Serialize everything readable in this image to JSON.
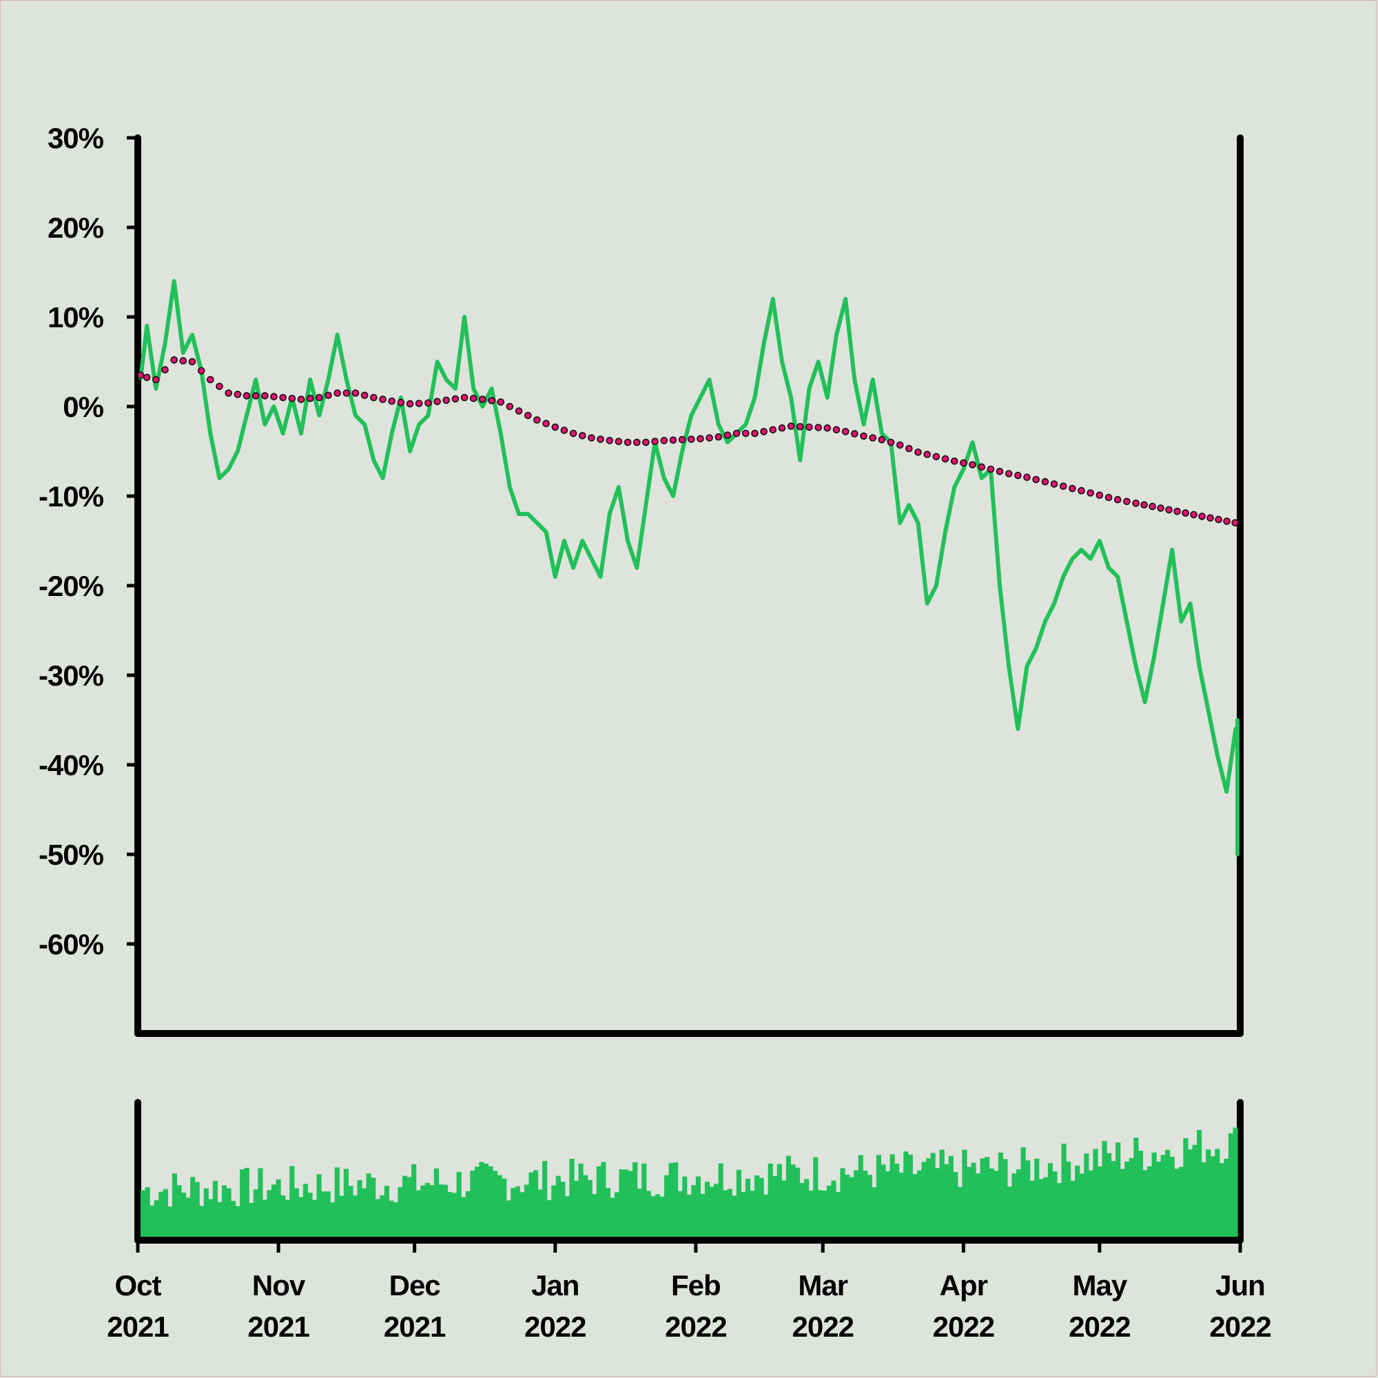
{
  "chart_data": {
    "type": "line",
    "x_axis": {
      "type": "date",
      "range": [
        "2021-10-01",
        "2022-06-01"
      ],
      "ticks": [
        {
          "date": "2021-10-01",
          "label": [
            "Oct",
            "2021"
          ]
        },
        {
          "date": "2021-11-01",
          "label": [
            "Nov",
            "2021"
          ]
        },
        {
          "date": "2021-12-01",
          "label": [
            "Dec",
            "2021"
          ]
        },
        {
          "date": "2022-01-01",
          "label": [
            "Jan",
            "2022"
          ]
        },
        {
          "date": "2022-02-01",
          "label": [
            "Feb",
            "2022"
          ]
        },
        {
          "date": "2022-03-01",
          "label": [
            "Mar",
            "2022"
          ]
        },
        {
          "date": "2022-04-01",
          "label": [
            "Apr",
            "2022"
          ]
        },
        {
          "date": "2022-05-01",
          "label": [
            "May",
            "2022"
          ]
        },
        {
          "date": "2022-06-01",
          "label": [
            "Jun",
            "2022"
          ]
        }
      ]
    },
    "y_axis": {
      "range": [
        -70,
        30
      ],
      "ticks": [
        30,
        20,
        10,
        0,
        -10,
        -20,
        -30,
        -40,
        -50,
        -60
      ],
      "tick_labels": [
        "30%",
        "20%",
        "10%",
        "0%",
        "-10%",
        "-20%",
        "-30%",
        "-40%",
        "-50%",
        "-60%"
      ],
      "unit": "%"
    },
    "grid": false,
    "colors": {
      "price": "#22c05a",
      "trend_fill": "#e0146e",
      "trend_stroke": "#111111",
      "volume": "#22c05a",
      "axes": "#000000",
      "background": "#dee3dc"
    },
    "series": [
      {
        "style": "solid-line",
        "points": [
          [
            "2021-10-01",
            3
          ],
          [
            "2021-10-03",
            9
          ],
          [
            "2021-10-05",
            2
          ],
          [
            "2021-10-07",
            7
          ],
          [
            "2021-10-09",
            14
          ],
          [
            "2021-10-11",
            6
          ],
          [
            "2021-10-13",
            8
          ],
          [
            "2021-10-15",
            4
          ],
          [
            "2021-10-17",
            -3
          ],
          [
            "2021-10-19",
            -8
          ],
          [
            "2021-10-21",
            -7
          ],
          [
            "2021-10-23",
            -5
          ],
          [
            "2021-10-25",
            -1
          ],
          [
            "2021-10-27",
            3
          ],
          [
            "2021-10-29",
            -2
          ],
          [
            "2021-10-31",
            0
          ],
          [
            "2021-11-02",
            -3
          ],
          [
            "2021-11-04",
            1
          ],
          [
            "2021-11-06",
            -3
          ],
          [
            "2021-11-08",
            3
          ],
          [
            "2021-11-10",
            -1
          ],
          [
            "2021-11-12",
            3
          ],
          [
            "2021-11-14",
            8
          ],
          [
            "2021-11-16",
            3
          ],
          [
            "2021-11-18",
            -1
          ],
          [
            "2021-11-20",
            -2
          ],
          [
            "2021-11-22",
            -6
          ],
          [
            "2021-11-24",
            -8
          ],
          [
            "2021-11-26",
            -3
          ],
          [
            "2021-11-28",
            1
          ],
          [
            "2021-11-30",
            -5
          ],
          [
            "2021-12-02",
            -2
          ],
          [
            "2021-12-04",
            -1
          ],
          [
            "2021-12-06",
            5
          ],
          [
            "2021-12-08",
            3
          ],
          [
            "2021-12-10",
            2
          ],
          [
            "2021-12-12",
            10
          ],
          [
            "2021-12-14",
            2
          ],
          [
            "2021-12-16",
            0
          ],
          [
            "2021-12-18",
            2
          ],
          [
            "2021-12-20",
            -3
          ],
          [
            "2021-12-22",
            -9
          ],
          [
            "2021-12-24",
            -12
          ],
          [
            "2021-12-26",
            -12
          ],
          [
            "2021-12-28",
            -13
          ],
          [
            "2021-12-30",
            -14
          ],
          [
            "2022-01-01",
            -19
          ],
          [
            "2022-01-03",
            -15
          ],
          [
            "2022-01-05",
            -18
          ],
          [
            "2022-01-07",
            -15
          ],
          [
            "2022-01-09",
            -17
          ],
          [
            "2022-01-11",
            -19
          ],
          [
            "2022-01-13",
            -12
          ],
          [
            "2022-01-15",
            -9
          ],
          [
            "2022-01-17",
            -15
          ],
          [
            "2022-01-19",
            -18
          ],
          [
            "2022-01-21",
            -11
          ],
          [
            "2022-01-23",
            -4
          ],
          [
            "2022-01-25",
            -8
          ],
          [
            "2022-01-27",
            -10
          ],
          [
            "2022-01-29",
            -5
          ],
          [
            "2022-01-31",
            -1
          ],
          [
            "2022-02-02",
            1
          ],
          [
            "2022-02-04",
            3
          ],
          [
            "2022-02-06",
            -2
          ],
          [
            "2022-02-08",
            -4
          ],
          [
            "2022-02-10",
            -3
          ],
          [
            "2022-02-12",
            -2
          ],
          [
            "2022-02-14",
            1
          ],
          [
            "2022-02-16",
            7
          ],
          [
            "2022-02-18",
            12
          ],
          [
            "2022-02-20",
            5
          ],
          [
            "2022-02-22",
            1
          ],
          [
            "2022-02-24",
            -6
          ],
          [
            "2022-02-26",
            2
          ],
          [
            "2022-02-28",
            5
          ],
          [
            "2022-03-02",
            1
          ],
          [
            "2022-03-04",
            8
          ],
          [
            "2022-03-06",
            12
          ],
          [
            "2022-03-08",
            3
          ],
          [
            "2022-03-10",
            -2
          ],
          [
            "2022-03-12",
            3
          ],
          [
            "2022-03-14",
            -3
          ],
          [
            "2022-03-16",
            -4
          ],
          [
            "2022-03-18",
            -13
          ],
          [
            "2022-03-20",
            -11
          ],
          [
            "2022-03-22",
            -13
          ],
          [
            "2022-03-24",
            -22
          ],
          [
            "2022-03-26",
            -20
          ],
          [
            "2022-03-28",
            -14
          ],
          [
            "2022-03-30",
            -9
          ],
          [
            "2022-04-01",
            -7
          ],
          [
            "2022-04-03",
            -4
          ],
          [
            "2022-04-05",
            -8
          ],
          [
            "2022-04-07",
            -7
          ],
          [
            "2022-04-09",
            -20
          ],
          [
            "2022-04-11",
            -29
          ],
          [
            "2022-04-13",
            -36
          ],
          [
            "2022-04-15",
            -29
          ],
          [
            "2022-04-17",
            -27
          ],
          [
            "2022-04-19",
            -24
          ],
          [
            "2022-04-21",
            -22
          ],
          [
            "2022-04-23",
            -19
          ],
          [
            "2022-04-25",
            -17
          ],
          [
            "2022-04-27",
            -16
          ],
          [
            "2022-04-29",
            -17
          ],
          [
            "2022-05-01",
            -15
          ],
          [
            "2022-05-03",
            -18
          ],
          [
            "2022-05-05",
            -19
          ],
          [
            "2022-05-07",
            -24
          ],
          [
            "2022-05-09",
            -29
          ],
          [
            "2022-05-11",
            -33
          ],
          [
            "2022-05-13",
            -28
          ],
          [
            "2022-05-15",
            -22
          ],
          [
            "2022-05-17",
            -16
          ],
          [
            "2022-05-19",
            -24
          ],
          [
            "2022-05-21",
            -22
          ],
          [
            "2022-05-23",
            -29
          ],
          [
            "2022-05-25",
            -34
          ],
          [
            "2022-05-27",
            -39
          ],
          [
            "2022-05-29",
            -43
          ],
          [
            "2022-05-31",
            -36
          ],
          [
            "2022-06-02",
            -38
          ],
          [
            "2022-06-04",
            -36
          ],
          [
            "2022-06-06",
            -35
          ],
          [
            "2022-06-08",
            -50
          ],
          [
            "2022-06-10",
            -41
          ],
          [
            "2022-06-12",
            -38
          ]
        ]
      },
      {
        "style": "dotted-trend",
        "points": [
          [
            "2021-10-01",
            3.5
          ],
          [
            "2021-10-05",
            3.0
          ],
          [
            "2021-10-09",
            5.2
          ],
          [
            "2021-10-13",
            5.0
          ],
          [
            "2021-10-17",
            3.0
          ],
          [
            "2021-10-21",
            1.5
          ],
          [
            "2021-10-25",
            1.2
          ],
          [
            "2021-10-29",
            1.2
          ],
          [
            "2021-11-02",
            1.0
          ],
          [
            "2021-11-06",
            0.8
          ],
          [
            "2021-11-10",
            1.0
          ],
          [
            "2021-11-14",
            1.5
          ],
          [
            "2021-11-18",
            1.5
          ],
          [
            "2021-11-22",
            1.0
          ],
          [
            "2021-11-26",
            0.6
          ],
          [
            "2021-11-30",
            0.3
          ],
          [
            "2021-12-04",
            0.4
          ],
          [
            "2021-12-08",
            0.7
          ],
          [
            "2021-12-12",
            1.0
          ],
          [
            "2021-12-16",
            0.8
          ],
          [
            "2021-12-20",
            0.5
          ],
          [
            "2021-12-24",
            -0.5
          ],
          [
            "2021-12-28",
            -1.5
          ],
          [
            "2022-01-01",
            -2.3
          ],
          [
            "2022-01-05",
            -3.0
          ],
          [
            "2022-01-09",
            -3.5
          ],
          [
            "2022-01-13",
            -3.8
          ],
          [
            "2022-01-17",
            -4.0
          ],
          [
            "2022-01-21",
            -4.0
          ],
          [
            "2022-01-25",
            -3.8
          ],
          [
            "2022-01-29",
            -3.7
          ],
          [
            "2022-02-02",
            -3.6
          ],
          [
            "2022-02-06",
            -3.4
          ],
          [
            "2022-02-10",
            -3.0
          ],
          [
            "2022-02-14",
            -3.0
          ],
          [
            "2022-02-18",
            -2.6
          ],
          [
            "2022-02-22",
            -2.2
          ],
          [
            "2022-02-26",
            -2.3
          ],
          [
            "2022-03-02",
            -2.4
          ],
          [
            "2022-03-06",
            -2.8
          ],
          [
            "2022-03-10",
            -3.3
          ],
          [
            "2022-03-14",
            -3.7
          ],
          [
            "2022-03-18",
            -4.3
          ],
          [
            "2022-03-22",
            -5.1
          ],
          [
            "2022-03-26",
            -5.6
          ],
          [
            "2022-03-30",
            -6.1
          ],
          [
            "2022-04-03",
            -6.5
          ],
          [
            "2022-04-07",
            -7.0
          ],
          [
            "2022-04-11",
            -7.5
          ],
          [
            "2022-04-15",
            -7.9
          ],
          [
            "2022-04-19",
            -8.4
          ],
          [
            "2022-04-23",
            -8.9
          ],
          [
            "2022-04-27",
            -9.4
          ],
          [
            "2022-05-01",
            -9.9
          ],
          [
            "2022-05-05",
            -10.4
          ],
          [
            "2022-05-09",
            -10.8
          ]
        ]
      }
    ],
    "volume": {
      "type": "bar",
      "scale_max": 100
    }
  }
}
